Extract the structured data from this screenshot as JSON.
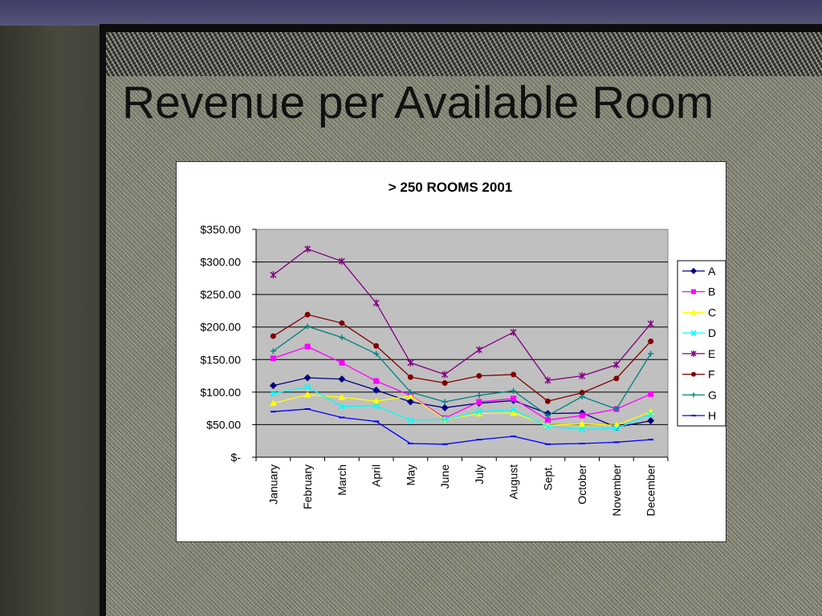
{
  "slide": {
    "title": "Revenue per Available Room"
  },
  "chart_data": {
    "type": "line",
    "title": "> 250 ROOMS 2001",
    "xlabel": "",
    "ylabel": "",
    "categories": [
      "January",
      "February",
      "March",
      "April",
      "May",
      "June",
      "July",
      "August",
      "Sept.",
      "October",
      "November",
      "December"
    ],
    "y_tick_labels": [
      "$-",
      "$50.00",
      "$100.00",
      "$150.00",
      "$200.00",
      "$250.00",
      "$300.00",
      "$350.00"
    ],
    "ylim": [
      0,
      350
    ],
    "grid": true,
    "legend_position": "right",
    "series": [
      {
        "name": "A",
        "color": "#000080",
        "marker": "diamond",
        "values": [
          110,
          122,
          120,
          103,
          85,
          76,
          83,
          87,
          67,
          68,
          46,
          56
        ]
      },
      {
        "name": "B",
        "color": "#ff00ff",
        "marker": "square",
        "values": [
          152,
          170,
          145,
          117,
          95,
          60,
          85,
          90,
          57,
          64,
          74,
          97
        ]
      },
      {
        "name": "C",
        "color": "#ffff00",
        "marker": "triangle",
        "values": [
          83,
          96,
          92,
          86,
          94,
          58,
          67,
          68,
          49,
          51,
          49,
          70
        ]
      },
      {
        "name": "D",
        "color": "#00ffff",
        "marker": "x",
        "values": [
          98,
          108,
          78,
          79,
          57,
          58,
          70,
          73,
          47,
          43,
          44,
          66
        ]
      },
      {
        "name": "E",
        "color": "#800080",
        "marker": "star",
        "values": [
          280,
          320,
          301,
          237,
          145,
          127,
          165,
          192,
          118,
          125,
          142,
          205
        ]
      },
      {
        "name": "F",
        "color": "#800000",
        "marker": "circle",
        "values": [
          186,
          219,
          206,
          171,
          123,
          114,
          125,
          127,
          86,
          99,
          121,
          178
        ]
      },
      {
        "name": "G",
        "color": "#008080",
        "marker": "plus",
        "values": [
          163,
          201,
          184,
          159,
          100,
          85,
          95,
          102,
          64,
          93,
          74,
          159
        ]
      },
      {
        "name": "H",
        "color": "#0000ff",
        "marker": "dash",
        "values": [
          70,
          74,
          61,
          55,
          21,
          20,
          27,
          32,
          20,
          21,
          23,
          27
        ]
      }
    ]
  }
}
